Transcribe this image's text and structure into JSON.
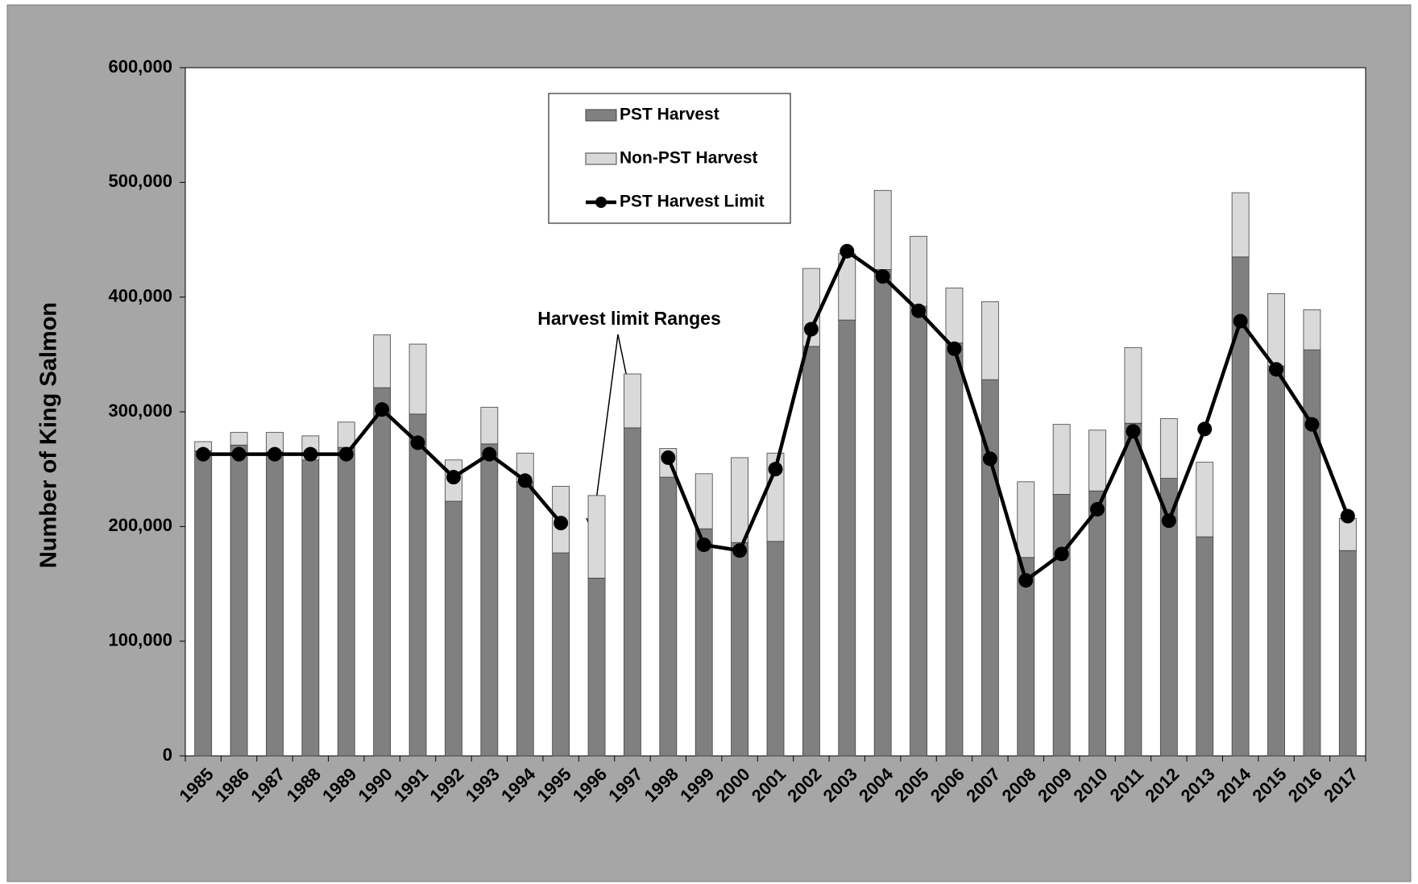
{
  "chart_data": {
    "type": "bar",
    "stacked": true,
    "y_label": "Number of King Salmon",
    "annotation": "Harvest limit Ranges",
    "categories": [
      "1985",
      "1986",
      "1987",
      "1988",
      "1989",
      "1990",
      "1991",
      "1992",
      "1993",
      "1994",
      "1995",
      "1996",
      "1997",
      "1998",
      "1999",
      "2000",
      "2001",
      "2002",
      "2003",
      "2004",
      "2005",
      "2006",
      "2007",
      "2008",
      "2009",
      "2010",
      "2011",
      "2012",
      "2013",
      "2014",
      "2015",
      "2016",
      "2017"
    ],
    "series": [
      {
        "name": "PST Harvest",
        "type": "bar",
        "color": "#808080",
        "values": [
          266000,
          271000,
          265000,
          258000,
          269000,
          321000,
          298000,
          222000,
          272000,
          239000,
          177000,
          155000,
          286000,
          243000,
          198000,
          186000,
          187000,
          357000,
          380000,
          424000,
          392000,
          360000,
          328000,
          173000,
          228000,
          231000,
          290000,
          242000,
          191000,
          435000,
          340000,
          354000,
          179000
        ]
      },
      {
        "name": "Non-PST Harvest",
        "type": "bar",
        "color": "#d9d9d9",
        "values": [
          8000,
          11000,
          17000,
          21000,
          22000,
          46000,
          61000,
          36000,
          32000,
          25000,
          58000,
          72000,
          47000,
          25000,
          48000,
          74000,
          77000,
          68000,
          58000,
          69000,
          61000,
          48000,
          68000,
          66000,
          61000,
          53000,
          66000,
          52000,
          65000,
          56000,
          63000,
          35000,
          28000
        ]
      },
      {
        "name": "PST Harvest Limit",
        "type": "line",
        "color": "#000000",
        "values": [
          263000,
          263000,
          263000,
          263000,
          263000,
          302000,
          273000,
          243000,
          263000,
          240000,
          203000,
          null,
          null,
          260000,
          184000,
          179000,
          250000,
          372000,
          440000,
          418000,
          388000,
          355000,
          259000,
          153000,
          176000,
          215000,
          283000,
          205000,
          285000,
          379000,
          337000,
          289000,
          209000
        ]
      }
    ],
    "ylim": [
      0,
      600000
    ],
    "yticks": [
      0,
      {
        "value": 100000,
        "label": "100,000"
      },
      {
        "value": 200000,
        "label": "200,000"
      },
      {
        "value": 300000,
        "label": "300,000"
      },
      {
        "value": 400000,
        "label": "400,000"
      },
      {
        "value": 500000,
        "label": "500,000"
      },
      {
        "value": 600000,
        "label": "600,000"
      }
    ],
    "legend": "top"
  }
}
